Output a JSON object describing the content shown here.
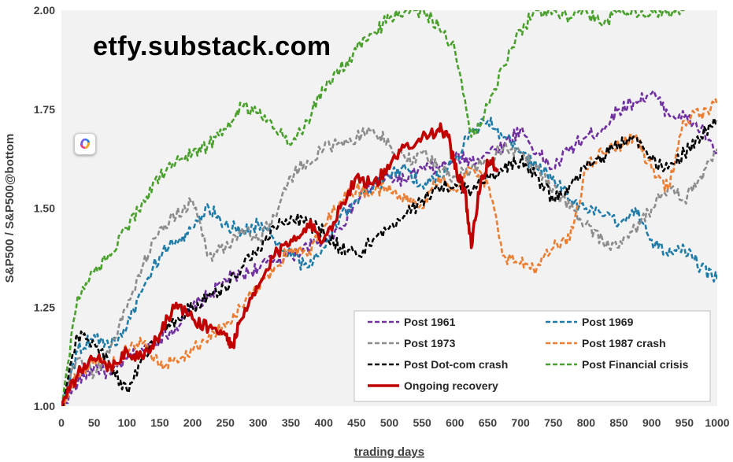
{
  "watermark": "etfy.substack.com",
  "chart_data": {
    "type": "line",
    "title": "",
    "xlabel": "trading days",
    "ylabel": "S&P500 / S&P500@bottom",
    "xlim": [
      0,
      1000
    ],
    "ylim": [
      1.0,
      2.0
    ],
    "xticks": [
      0,
      50,
      100,
      150,
      200,
      250,
      300,
      350,
      400,
      450,
      500,
      550,
      600,
      650,
      700,
      750,
      800,
      850,
      900,
      950,
      1000
    ],
    "yticks": [
      "1.00",
      "1.25",
      "1.50",
      "1.75",
      "2.00"
    ],
    "grid": false,
    "legend_position": "bottom-right",
    "series": [
      {
        "name": "Post 1961",
        "color": "#7030a0",
        "dash": true,
        "x": [
          0,
          25,
          50,
          75,
          100,
          125,
          150,
          175,
          200,
          225,
          250,
          275,
          300,
          325,
          350,
          375,
          400,
          425,
          450,
          475,
          500,
          525,
          550,
          575,
          600,
          625,
          650,
          675,
          700,
          725,
          750,
          775,
          800,
          825,
          850,
          875,
          900,
          925,
          950,
          975,
          1000
        ],
        "y": [
          1.0,
          1.06,
          1.1,
          1.08,
          1.12,
          1.14,
          1.17,
          1.2,
          1.25,
          1.28,
          1.32,
          1.33,
          1.35,
          1.37,
          1.38,
          1.4,
          1.42,
          1.45,
          1.52,
          1.56,
          1.58,
          1.57,
          1.6,
          1.6,
          1.63,
          1.62,
          1.64,
          1.66,
          1.7,
          1.64,
          1.6,
          1.65,
          1.68,
          1.7,
          1.75,
          1.77,
          1.79,
          1.74,
          1.73,
          1.7,
          1.64
        ]
      },
      {
        "name": "Post 1969",
        "color": "#1f7ca8",
        "dash": true,
        "x": [
          0,
          25,
          50,
          75,
          100,
          125,
          150,
          175,
          200,
          225,
          250,
          275,
          300,
          325,
          350,
          375,
          400,
          425,
          450,
          475,
          500,
          525,
          550,
          575,
          600,
          625,
          650,
          675,
          700,
          725,
          750,
          775,
          800,
          825,
          850,
          875,
          900,
          925,
          950,
          975,
          1000
        ],
        "y": [
          1.0,
          1.14,
          1.18,
          1.15,
          1.2,
          1.3,
          1.38,
          1.42,
          1.45,
          1.5,
          1.46,
          1.44,
          1.46,
          1.42,
          1.38,
          1.35,
          1.4,
          1.48,
          1.52,
          1.55,
          1.58,
          1.6,
          1.56,
          1.58,
          1.62,
          1.7,
          1.72,
          1.68,
          1.64,
          1.6,
          1.58,
          1.52,
          1.5,
          1.48,
          1.46,
          1.5,
          1.42,
          1.38,
          1.4,
          1.35,
          1.32
        ]
      },
      {
        "name": "Post 1973",
        "color": "#8c8c8c",
        "dash": true,
        "x": [
          0,
          25,
          50,
          75,
          100,
          125,
          150,
          175,
          200,
          225,
          250,
          275,
          300,
          325,
          350,
          375,
          400,
          425,
          450,
          475,
          500,
          525,
          550,
          575,
          600,
          625,
          650,
          675,
          700,
          725,
          750,
          775,
          800,
          825,
          850,
          875,
          900,
          925,
          950,
          975,
          1000
        ],
        "y": [
          1.0,
          1.12,
          1.08,
          1.15,
          1.25,
          1.36,
          1.45,
          1.48,
          1.52,
          1.38,
          1.4,
          1.45,
          1.42,
          1.48,
          1.58,
          1.62,
          1.65,
          1.66,
          1.68,
          1.7,
          1.66,
          1.62,
          1.64,
          1.6,
          1.58,
          1.6,
          1.62,
          1.66,
          1.64,
          1.6,
          1.55,
          1.5,
          1.46,
          1.42,
          1.4,
          1.45,
          1.5,
          1.55,
          1.52,
          1.58,
          1.65
        ]
      },
      {
        "name": "Post 1987 crash",
        "color": "#ed7d31",
        "dash": true,
        "x": [
          0,
          25,
          50,
          75,
          100,
          125,
          150,
          175,
          200,
          225,
          250,
          275,
          300,
          325,
          350,
          375,
          400,
          425,
          450,
          475,
          500,
          525,
          550,
          575,
          600,
          625,
          650,
          675,
          700,
          725,
          750,
          775,
          800,
          825,
          850,
          875,
          900,
          925,
          950,
          975,
          1000
        ],
        "y": [
          1.0,
          1.08,
          1.12,
          1.1,
          1.14,
          1.16,
          1.1,
          1.12,
          1.14,
          1.18,
          1.2,
          1.25,
          1.3,
          1.35,
          1.4,
          1.38,
          1.45,
          1.52,
          1.55,
          1.54,
          1.56,
          1.52,
          1.5,
          1.58,
          1.55,
          1.6,
          1.56,
          1.38,
          1.36,
          1.35,
          1.4,
          1.42,
          1.6,
          1.64,
          1.66,
          1.68,
          1.6,
          1.55,
          1.72,
          1.74,
          1.76
        ]
      },
      {
        "name": "Post Dot-com crash",
        "color": "#000000",
        "dash": true,
        "x": [
          0,
          25,
          50,
          75,
          100,
          125,
          150,
          175,
          200,
          225,
          250,
          275,
          300,
          325,
          350,
          375,
          400,
          425,
          450,
          475,
          500,
          525,
          550,
          575,
          600,
          625,
          650,
          675,
          700,
          725,
          750,
          775,
          800,
          825,
          850,
          875,
          900,
          925,
          950,
          975,
          1000
        ],
        "y": [
          1.0,
          1.18,
          1.16,
          1.1,
          1.04,
          1.12,
          1.18,
          1.22,
          1.25,
          1.28,
          1.3,
          1.35,
          1.4,
          1.45,
          1.48,
          1.46,
          1.44,
          1.4,
          1.38,
          1.42,
          1.45,
          1.48,
          1.52,
          1.55,
          1.56,
          1.54,
          1.58,
          1.6,
          1.62,
          1.58,
          1.52,
          1.56,
          1.6,
          1.63,
          1.66,
          1.68,
          1.62,
          1.6,
          1.64,
          1.68,
          1.72
        ]
      },
      {
        "name": "Post Financial crisis",
        "color": "#4aa02c",
        "dash": true,
        "x": [
          0,
          25,
          50,
          75,
          100,
          125,
          150,
          175,
          200,
          225,
          250,
          275,
          300,
          325,
          350,
          375,
          400,
          425,
          450,
          475,
          500,
          525,
          550,
          575,
          600,
          625,
          650,
          675,
          700,
          725,
          750,
          775,
          800,
          825,
          850,
          875,
          900,
          925,
          950
        ],
        "y": [
          1.0,
          1.28,
          1.34,
          1.38,
          1.45,
          1.52,
          1.58,
          1.62,
          1.64,
          1.66,
          1.7,
          1.76,
          1.74,
          1.7,
          1.66,
          1.72,
          1.8,
          1.85,
          1.9,
          1.94,
          1.98,
          2.0,
          2.0,
          1.96,
          1.9,
          1.68,
          1.76,
          1.86,
          1.95,
          2.0,
          2.0,
          1.98,
          2.0,
          1.96,
          2.0,
          2.0,
          2.0,
          2.0,
          2.0
        ]
      },
      {
        "name": "Ongoing recovery",
        "color": "#c00000",
        "dash": false,
        "x": [
          0,
          25,
          50,
          75,
          100,
          125,
          150,
          175,
          200,
          225,
          250,
          260,
          275,
          300,
          325,
          350,
          375,
          400,
          425,
          450,
          475,
          500,
          525,
          550,
          575,
          590,
          600,
          615,
          625,
          640,
          655,
          665
        ],
        "y": [
          1.0,
          1.08,
          1.12,
          1.1,
          1.14,
          1.12,
          1.18,
          1.26,
          1.22,
          1.2,
          1.18,
          1.15,
          1.22,
          1.3,
          1.38,
          1.42,
          1.46,
          1.42,
          1.5,
          1.58,
          1.56,
          1.6,
          1.66,
          1.68,
          1.7,
          1.68,
          1.6,
          1.55,
          1.4,
          1.58,
          1.62,
          1.6
        ]
      }
    ]
  }
}
